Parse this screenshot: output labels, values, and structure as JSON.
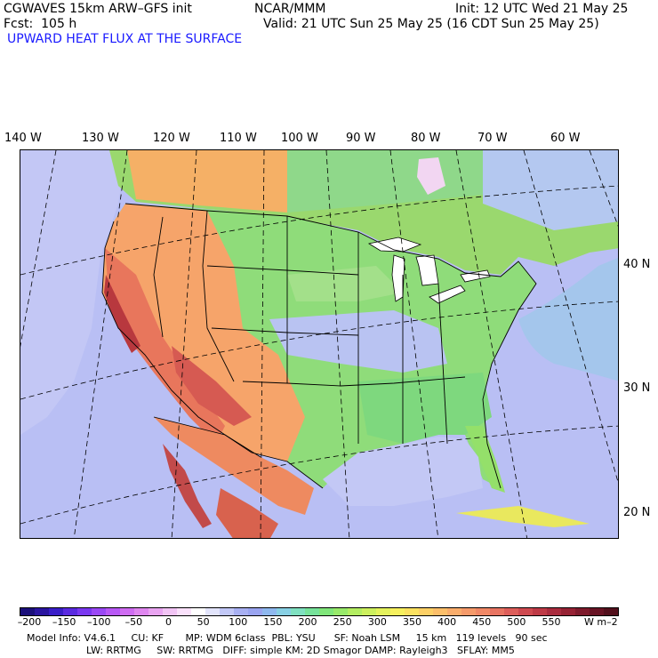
{
  "header": {
    "model_title": "CGWAVES 15km ARW–GFS init",
    "org": "NCAR/MMM",
    "init": "Init: 12 UTC Wed 21 May 25",
    "fcst": "Fcst:  105 h",
    "valid": "Valid: 21 UTC Sun 25 May 25 (16 CDT Sun 25 May 25)",
    "field": "UPWARD HEAT FLUX AT THE SURFACE"
  },
  "longitude_labels": [
    "140 W",
    "130 W",
    "120 W",
    "110 W",
    "100 W",
    "90 W",
    "80 W",
    "70 W",
    "60 W"
  ],
  "latitude_labels": [
    "40 N",
    "30 N",
    "20 N"
  ],
  "colorbar": {
    "tick_labels": [
      "–200",
      "–150",
      "–100",
      "–50",
      "0",
      "50",
      "100",
      "150",
      "200",
      "250",
      "300",
      "350",
      "400",
      "450",
      "500",
      "550"
    ],
    "units": "W m–2",
    "colors": [
      "#1a0f7a",
      "#2a15a0",
      "#3a1ec8",
      "#5a2ae0",
      "#7a38f0",
      "#9a48f5",
      "#b858f5",
      "#cf6cf2",
      "#df86ef",
      "#e9a4f1",
      "#f2c4f5",
      "#fae1fb",
      "#ffffff",
      "#e2e4fb",
      "#c2c8f7",
      "#a8b0f2",
      "#9aa4f0",
      "#8fb8ef",
      "#88d0e4",
      "#7fe0c0",
      "#76e29a",
      "#80e67a",
      "#98ea6a",
      "#b4ee62",
      "#cdf05e",
      "#e4f25c",
      "#f6f05e",
      "#fbe160",
      "#fdd066",
      "#fcbf6a",
      "#f9ad6c",
      "#f59a6a",
      "#f08866",
      "#e87462",
      "#dd5e5a",
      "#cf4a50",
      "#be3a46",
      "#aa2c3e",
      "#962234",
      "#7e1a2c",
      "#681424",
      "#52101c"
    ]
  },
  "model_info": {
    "line1": "Model Info: V4.6.1     CU: KF       MP: WDM 6class  PBL: YSU      SF: Noah LSM     15 km   119 levels   90 sec",
    "line2": "LW: RRTMG     SW: RRTMG   DIFF: simple KM: 2D Smagor DAMP: Rayleigh3   SFLAY: MM5"
  }
}
